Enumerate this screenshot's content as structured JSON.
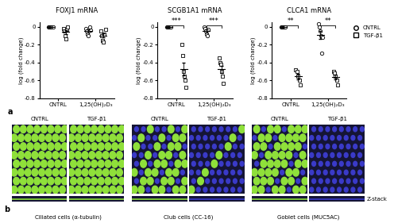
{
  "panel_labels": {
    "charts": "a",
    "images": "b"
  },
  "chart_data": [
    {
      "type": "scatter",
      "title": "FOXJ1 mRNA",
      "ylabel": "log (fold change)",
      "categories": [
        "CNTRL",
        "1,25(OH)₂D₃"
      ],
      "ylim": [
        -0.8,
        0.05
      ],
      "yticks": [
        0,
        -0.2,
        -0.4,
        -0.6,
        -0.8
      ],
      "series": [
        {
          "name": "CNTRL",
          "marker": "circle",
          "color": "#ffffff",
          "values": [
            [
              0,
              0,
              0,
              0,
              0,
              0
            ],
            [
              -0.02,
              -0.05,
              -0.08,
              -0.1,
              0.0,
              -0.04
            ]
          ],
          "mean": [
            0,
            -0.048
          ],
          "error": [
            0,
            0.015
          ]
        },
        {
          "name": "TGF-β1",
          "marker": "square",
          "color": "#ffffff",
          "values": [
            [
              -0.02,
              -0.05,
              -0.1,
              -0.14,
              -0.03,
              0.0
            ],
            [
              -0.05,
              -0.1,
              -0.15,
              -0.17,
              -0.08,
              -0.03
            ]
          ],
          "mean": [
            -0.057,
            -0.097
          ],
          "error": [
            0.023,
            0.023
          ]
        }
      ]
    },
    {
      "type": "scatter",
      "title": "SCGB1A1 mRNA",
      "ylabel": "log (fold change)",
      "categories": [
        "CNTRL",
        "1,25(OH)₂D₃"
      ],
      "ylim": [
        -0.8,
        0.05
      ],
      "yticks": [
        0,
        -0.2,
        -0.4,
        -0.6,
        -0.8
      ],
      "series": [
        {
          "name": "CNTRL",
          "marker": "circle",
          "color": "#ffffff",
          "values": [
            [
              0,
              0,
              0,
              0,
              0,
              0
            ],
            [
              0.0,
              -0.02,
              -0.05,
              -0.08,
              -0.1,
              -0.03
            ]
          ],
          "mean": [
            0,
            -0.047
          ],
          "error": [
            0,
            0.016
          ]
        },
        {
          "name": "TGF-β1",
          "marker": "square",
          "color": "#ffffff",
          "values": [
            [
              -0.2,
              -0.32,
              -0.5,
              -0.55,
              -0.6,
              -0.68
            ],
            [
              -0.35,
              -0.4,
              -0.42,
              -0.5,
              -0.55,
              -0.63
            ]
          ],
          "mean": [
            -0.475,
            -0.475
          ],
          "error": [
            0.07,
            0.04
          ]
        }
      ],
      "annotations": [
        {
          "text": "***",
          "category": 0
        },
        {
          "text": "***",
          "category": 1
        }
      ]
    },
    {
      "type": "scatter",
      "title": "CLCA1 mRNA",
      "ylabel": "log (fold change)",
      "categories": [
        "CNTRL",
        "1,25(OH)₂D₃"
      ],
      "ylim": [
        -0.8,
        0.05
      ],
      "yticks": [
        0,
        -0.2,
        -0.4,
        -0.6,
        -0.8
      ],
      "legend": "upper left",
      "series": [
        {
          "name": "CNTRL",
          "marker": "circle",
          "color": "#ffffff",
          "values": [
            [
              0,
              0,
              0,
              0,
              0,
              0
            ],
            [
              0.03,
              0.0,
              -0.05,
              -0.1,
              -0.3,
              -0.12
            ]
          ],
          "mean": [
            0,
            -0.09
          ],
          "error": [
            0,
            0.047
          ]
        },
        {
          "name": "TGF-β1",
          "marker": "square",
          "color": "#ffffff",
          "values": [
            [
              -0.48,
              -0.5,
              -0.55,
              -0.6,
              -0.65
            ],
            [
              -0.5,
              -0.52,
              -0.55,
              -0.6,
              -0.65
            ]
          ],
          "mean": [
            -0.556,
            -0.564
          ],
          "error": [
            0.031,
            0.027
          ]
        }
      ],
      "annotations": [
        {
          "text": "**",
          "category": 0
        },
        {
          "text": "**",
          "category": 1
        }
      ]
    }
  ],
  "images": {
    "groups": [
      {
        "label": "Ciliated cells (α-tubulin)",
        "conditions": [
          "CNTRL",
          "TGF-β1"
        ]
      },
      {
        "label": "Club cells (CC-16)",
        "conditions": [
          "CNTRL",
          "TGF-β1"
        ]
      },
      {
        "label": "Goblet cells (MUC5AC)",
        "conditions": [
          "CNTRL",
          "TGF-β1"
        ]
      }
    ],
    "side_label": "Z-stack"
  }
}
